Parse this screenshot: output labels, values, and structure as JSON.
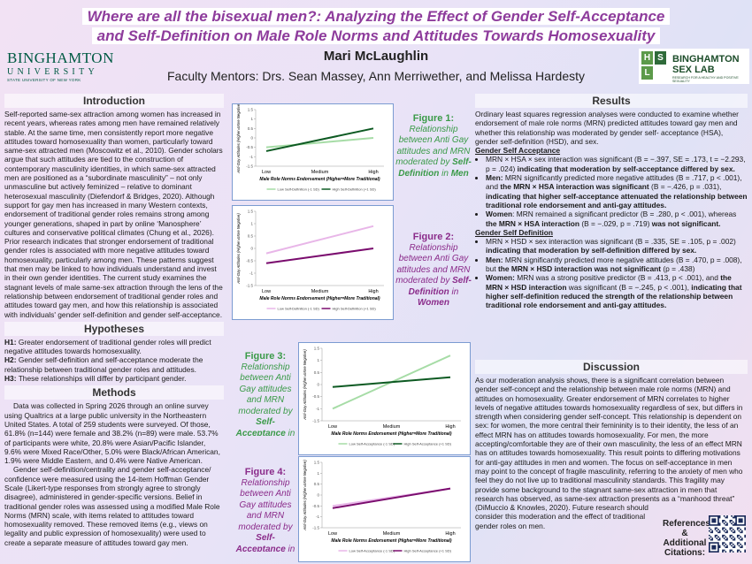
{
  "header": {
    "title_lines": [
      "Where are all the bisexual men?: Analyzing the Effect of Gender Self-Acceptance",
      "and Self-Definition on Male Role Norms and Attitudes Towards Homosexuality"
    ],
    "author": "Mari McLaughlin",
    "mentors": "Faculty Mentors: Drs. Sean Massey, Ann Merriwether, and Melissa Hardesty"
  },
  "logo_left": {
    "name": "BINGHAMTON",
    "sub": "UNIVERSITY",
    "tagline": "STATE UNIVERSITY OF NEW YORK"
  },
  "logo_right": {
    "letters": [
      "H",
      "S",
      "L"
    ],
    "name": "BINGHAMTON",
    "sub": "SEX LAB",
    "tagline": "RESEARCH FOR A HEALTHY AND POSITIVE SEXUALITY"
  },
  "introduction": {
    "heading": "Introduction",
    "text": "Self-reported same-sex attraction among women has increased in recent years, whereas rates among men have remained relatively stable. At the same time, men consistently report more negative attitudes toward homosexuality than women, particularly toward same-sex attracted men (Moscowitz et al., 2010). Gender scholars argue that such attitudes are tied to the construction of contemporary masculinity identities, in which same-sex attracted men are positioned as a “subordinate masculinity” – not only unmasculine but actively feminized – relative to dominant heterosexual masculinity (Diefendorf & Bridges, 2020). Although support for gay men has increased in many Western contexts, endorsement of traditional gender roles remains strong among younger generations, shaped in part by online ‘Manosphere’ cultures and conservative political climates (Chung et al., 2026). Prior research indicates that stronger endorsement of traditional gender roles is associated with more negative attitudes toward homosexuality, particularly among men. These patterns suggest that men may be linked to how individuals understand and invest in their own gender identities. The current study examines the stagnant levels of male same-sex attraction through the lens of the relationship between endorsement of traditional gender roles and attitudes toward gay men, and how this relationship is associated with individuals' gender self-definition and gender self-acceptance."
  },
  "hypotheses": {
    "heading": "Hypotheses",
    "items": [
      {
        "label": "H1:",
        "text": "Greater endorsement of traditional gender roles will predict negative attitudes towards homosexuality."
      },
      {
        "label": "H2:",
        "text": "Gender self-definition and self-acceptance moderate the relationship between traditional gender roles and attitudes."
      },
      {
        "label": "H3:",
        "text": "These relationships will differ by participant gender."
      }
    ]
  },
  "methods": {
    "heading": "Methods",
    "paragraphs": [
      "Data was collected in Spring 2026 through an online survey using Qualtrics at a large public university in the Northeastern United States. A total of 259 students were surveyed. Of those, 61.8% (n=144) were female and 38.2% (n=89) were male. 53.7% of participants were white, 20.8% were Asian/Pacific Islander, 9.6% were Mixed Race/Other, 5.0% were Black/African American, 1.9% were Middle Eastern, and 0.4% were Native American.",
      "Gender self-definition/centrality and gender self-acceptance/ confidence were measured using the 14-item Hoffman Gender Scale (Likert-type responses from strongly agree to strongly disagree), administered in gender-specific versions. Belief in traditional gender roles was assessed using a modified Male Role Norms (MRN) scale, with items related to attitudes toward homosexuality removed. These removed items (e.g., views on legality and public expression of homosexuality) were used to create a separate measure of attitudes toward gay men."
    ]
  },
  "figures": [
    {
      "label": "Figure 1:",
      "caption_color": "#3a9a48",
      "caption": [
        {
          "text": "Relationship between Anti Gay attitudes and MRN moderated by "
        },
        {
          "text": "Self-Definition",
          "bold": true
        },
        {
          "text": " in "
        },
        {
          "text": "Men",
          "bold": true
        }
      ],
      "chart": {
        "type": "line",
        "categories": [
          "Low",
          "Medium",
          "High"
        ],
        "xlabel": "Male Role Norms Endorsement (Higher=More Traditional)",
        "ylabel": "Anti-Gay Attitudes (Higher=More Negative)",
        "ylim": [
          -1.5,
          1.5
        ],
        "yticks": [
          -1.5,
          -1,
          -0.5,
          0,
          0.5,
          1,
          1.5
        ],
        "series": [
          {
            "name": "Low Self-Definition (-1 SD)",
            "color": "#a6dca6",
            "values": [
              -0.5,
              -0.25,
              0.0
            ]
          },
          {
            "name": "High Self-Definition (+1 SD)",
            "color": "#0d5a22",
            "values": [
              -0.7,
              -0.1,
              0.5
            ]
          }
        ]
      }
    },
    {
      "label": "Figure 2:",
      "caption_color": "#8a2b8a",
      "caption": [
        {
          "text": "Relationship between Anti Gay attitudes and MRN moderated by "
        },
        {
          "text": "Self-Definition",
          "bold": true
        },
        {
          "text": " in "
        },
        {
          "text": "Women",
          "bold": true
        }
      ],
      "chart": {
        "type": "line",
        "categories": [
          "Low",
          "Medium",
          "High"
        ],
        "xlabel": "Male Role Norms Endorsement (Higher=More Traditional)",
        "ylabel": "Anti-Gay Attitudes (Higher=More Negative)",
        "ylim": [
          -1.5,
          1.5
        ],
        "yticks": [
          -1.5,
          -1,
          -0.5,
          0,
          0.5,
          1,
          1.5
        ],
        "series": [
          {
            "name": "Low Self-Definition (-1 SD)",
            "color": "#e8b6e8",
            "values": [
              -0.2,
              0.35,
              0.9
            ]
          },
          {
            "name": "High Self-Definition (+1 SD)",
            "color": "#7a0c6e",
            "values": [
              -0.6,
              -0.3,
              0.0
            ]
          }
        ]
      }
    },
    {
      "label": "Figure 3:",
      "caption_color": "#3a9a48",
      "caption": [
        {
          "text": "Relationship between Anti Gay attitudes and MRN moderated by "
        },
        {
          "text": "Self-Acceptance",
          "bold": true
        },
        {
          "text": " in "
        },
        {
          "text": "Men",
          "bold": true
        }
      ],
      "chart": {
        "type": "line",
        "categories": [
          "Low",
          "Medium",
          "High"
        ],
        "xlabel": "Male Role Norms Endorsement (Higher=More Traditional)",
        "ylabel": "Anti-Gay Attitudes (Higher=More Negative)",
        "ylim": [
          -1.5,
          1.5
        ],
        "yticks": [
          -1.5,
          -1,
          -0.5,
          0,
          0.5,
          1,
          1.5
        ],
        "series": [
          {
            "name": "Low Self-Acceptance (-1 SD)",
            "color": "#a6dca6",
            "values": [
              -1.0,
              0.1,
              1.2
            ]
          },
          {
            "name": "High Self-Acceptance (+1 SD)",
            "color": "#0d5a22",
            "values": [
              -0.1,
              0.1,
              0.3
            ]
          }
        ]
      }
    },
    {
      "label": "Figure 4:",
      "caption_color": "#8a2b8a",
      "caption": [
        {
          "text": "Relationship between Anti Gay attitudes and MRN moderated by "
        },
        {
          "text": "Self-Acceptance",
          "bold": true
        },
        {
          "text": " in "
        },
        {
          "text": "Women",
          "bold": true
        }
      ],
      "chart": {
        "type": "line",
        "categories": [
          "Low",
          "Medium",
          "High"
        ],
        "xlabel": "Male Role Norms Endorsement (Higher=More Traditional)",
        "ylabel": "Anti-Gay Attitudes (Higher=More Negative)",
        "ylim": [
          -1.5,
          1.5
        ],
        "yticks": [
          -1.5,
          -1,
          -0.5,
          0,
          0.5,
          1,
          1.5
        ],
        "series": [
          {
            "name": "Low Self-Acceptance (-1 SD)",
            "color": "#e8b6e8",
            "values": [
              -0.5,
              -0.1,
              0.3
            ]
          },
          {
            "name": "High Self-Acceptance (+1 SD)",
            "color": "#7a0c6e",
            "values": [
              -0.6,
              -0.15,
              0.3
            ]
          }
        ]
      }
    }
  ],
  "results": {
    "heading": "Results",
    "intro": "Ordinary least squares regression analyses were conducted to examine whether endorsement of male role norms (MRN) predicted attitudes toward gay men and whether this relationship was moderated by gender self- acceptance (HSA), gender self-definition (HSD), and sex.",
    "subsections": [
      {
        "heading": "Gender Self Acceptance",
        "bullets": [
          [
            {
              "text": "MRN × HSA × sex interaction was significant (B = −.397, SE = .173, t = −2.293, p = .024) "
            },
            {
              "text": "indicating that moderation by self-acceptance differed by sex.",
              "bold": true
            }
          ],
          [
            {
              "text": "Men:",
              "bold": true
            },
            {
              "text": " MRN significantly predicted more negative attitudes (B = .717, p < .001), and "
            },
            {
              "text": "the MRN × HSA interaction was significant",
              "bold": true
            },
            {
              "text": " (B = −.426, p = .031), "
            },
            {
              "text": "indicating that higher self-acceptance attenuated the relationship between traditional role endorsement and anti-gay attitudes.",
              "bold": true
            }
          ],
          [
            {
              "text": "Women",
              "bold": true
            },
            {
              "text": ": MRN remained a significant predictor (B = .280, p < .001), whereas "
            },
            {
              "text": "the MRN × HSA interaction",
              "bold": true
            },
            {
              "text": " (B = −.029, p = .719) "
            },
            {
              "text": "was not significant.",
              "bold": true
            }
          ]
        ]
      },
      {
        "heading": "Gender Self Definition",
        "bullets": [
          [
            {
              "text": "MRN × HSD × sex interaction was significant (B = .335, SE = .105, p = .002) "
            },
            {
              "text": "indicating that moderation by self-definition differed by sex.",
              "bold": true
            }
          ],
          [
            {
              "text": "Men:",
              "bold": true
            },
            {
              "text": " MRN significantly predicted more negative attitudes (B = .470, p = .008), but "
            },
            {
              "text": "the MRN × HSD interaction was not significant",
              "bold": true
            },
            {
              "text": " (p = .438)"
            }
          ],
          [
            {
              "text": "Women:",
              "bold": true
            },
            {
              "text": " MRN was a strong positive predictor (B = .413, p < .001), and "
            },
            {
              "text": "the MRN × HSD interaction",
              "bold": true
            },
            {
              "text": " was significant (B = −.245, p < .001), "
            },
            {
              "text": "indicating that higher self-definition reduced the strength of the relationship between traditional role endorsement and anti-gay attitudes.",
              "bold": true
            }
          ]
        ]
      }
    ]
  },
  "discussion": {
    "heading": "Discussion",
    "text": "As our moderation analysis shows, there is a significant correlation between gender self-concept and the relationship between male role norms (MRN) and attitudes on homosexuality. Greater endorsement of MRN correlates to higher levels of negative attitudes towards homosexuality regardless of sex, but differs in strength when considering gender self-concept. This relationship is dependent on sex: for women, the more central their femininity is to their identity, the less of an effect MRN has on attitudes towards homosexuality. For men, the more accepting/comfortable they are of their own masculinity, the less of an effect MRN has on attitudes towards homosexuality. This result points to differing motivations for anti-gay attitudes in men and women. The focus on self-acceptance in men may point to the concept of fragile masculinity, referring to the anxiety of men who feel they do not live up to traditional masculinity standards. This fragility may provide some background to the stagnant same-sex attraction in men that research has observed, as same-sex attraction presents as a “manhood threat” (DiMuccio & Knowles, 2020). Future research should consider this moderation and the effect of traditional gender roles on men."
  },
  "references": {
    "label": "References & Additional Citations:"
  }
}
